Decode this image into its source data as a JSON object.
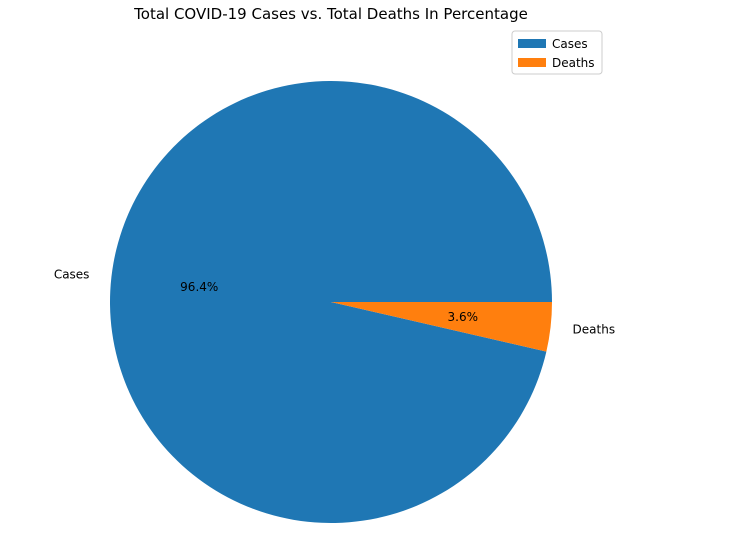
{
  "chart_data": {
    "type": "pie",
    "title": "Total COVID-19 Cases vs. Total Deaths In Percentage",
    "categories": [
      "Cases",
      "Deaths"
    ],
    "values": [
      96.4,
      3.6
    ],
    "value_labels": [
      "96.4%",
      "3.6%"
    ],
    "colors": [
      "#1f77b4",
      "#ff7f0e"
    ],
    "legend": {
      "placement": "top-right",
      "entries": [
        "Cases",
        "Deaths"
      ]
    }
  }
}
